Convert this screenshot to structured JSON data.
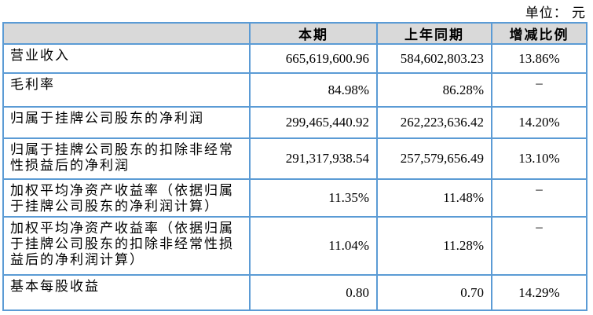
{
  "page": {
    "unit_label": "单位： 元"
  },
  "table": {
    "header": {
      "period_current": "本期",
      "period_prior": "上年同期",
      "change_ratio": "增减比例"
    },
    "rows": [
      {
        "label": "营业收入",
        "current": "665,619,600.96",
        "prior": "584,602,803.23",
        "change": "13.86%"
      },
      {
        "label": "毛利率",
        "current": "84.98%",
        "prior": "86.28%",
        "change": "–"
      },
      {
        "label": "归属于挂牌公司股东的净利润",
        "current": "299,465,440.92",
        "prior": "262,223,636.42",
        "change": "14.20%"
      },
      {
        "label": "归属于挂牌公司股东的扣除非经常性损益后的净利润",
        "current": "291,317,938.54",
        "prior": "257,579,656.49",
        "change": "13.10%"
      },
      {
        "label": "加权平均净资产收益率（依据归属于挂牌公司股东的净利润计算）",
        "current": "11.35%",
        "prior": "11.48%",
        "change": "–"
      },
      {
        "label": "加权平均净资产收益率（依据归属于挂牌公司股东的扣除非经常性损益后的净利润计算）",
        "current": "11.04%",
        "prior": "11.28%",
        "change": "–"
      },
      {
        "label": "基本每股收益",
        "current": "0.80",
        "prior": "0.70",
        "change": "14.29%"
      }
    ]
  },
  "colors": {
    "border_blue": "#5B9BD5",
    "header_bg": "#D9D9D9",
    "text": "#000000"
  }
}
